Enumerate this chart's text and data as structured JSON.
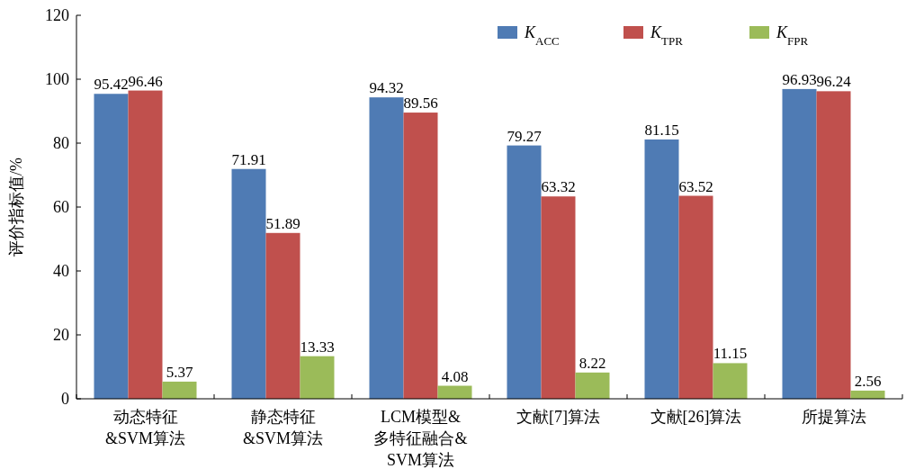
{
  "chart_data": {
    "type": "bar",
    "ylabel": "评价指标值/%",
    "categories": [
      "动态特征\n&SVM算法",
      "静态特征\n&SVM算法",
      "LCM模型&\n多特征融合&\nSVM算法",
      "文献[7]算法",
      "文献[26]算法",
      "所提算法"
    ],
    "series": [
      {
        "name": "K$_{ACC}$",
        "color": "#4f7bb4",
        "values": [
          95.42,
          71.91,
          94.32,
          79.27,
          81.15,
          96.93
        ]
      },
      {
        "name": "K$_{TPR}$",
        "color": "#c0504d",
        "values": [
          96.46,
          51.89,
          89.56,
          63.32,
          63.52,
          96.24
        ]
      },
      {
        "name": "K$_{FPR}$",
        "color": "#9bbb59",
        "values": [
          5.37,
          13.33,
          4.08,
          8.22,
          11.15,
          2.56
        ]
      }
    ],
    "ylim": [
      0,
      120
    ],
    "yticks": [
      0,
      20,
      40,
      60,
      80,
      100,
      120
    ],
    "data_labels": true,
    "legend": "top right",
    "grid": false
  }
}
